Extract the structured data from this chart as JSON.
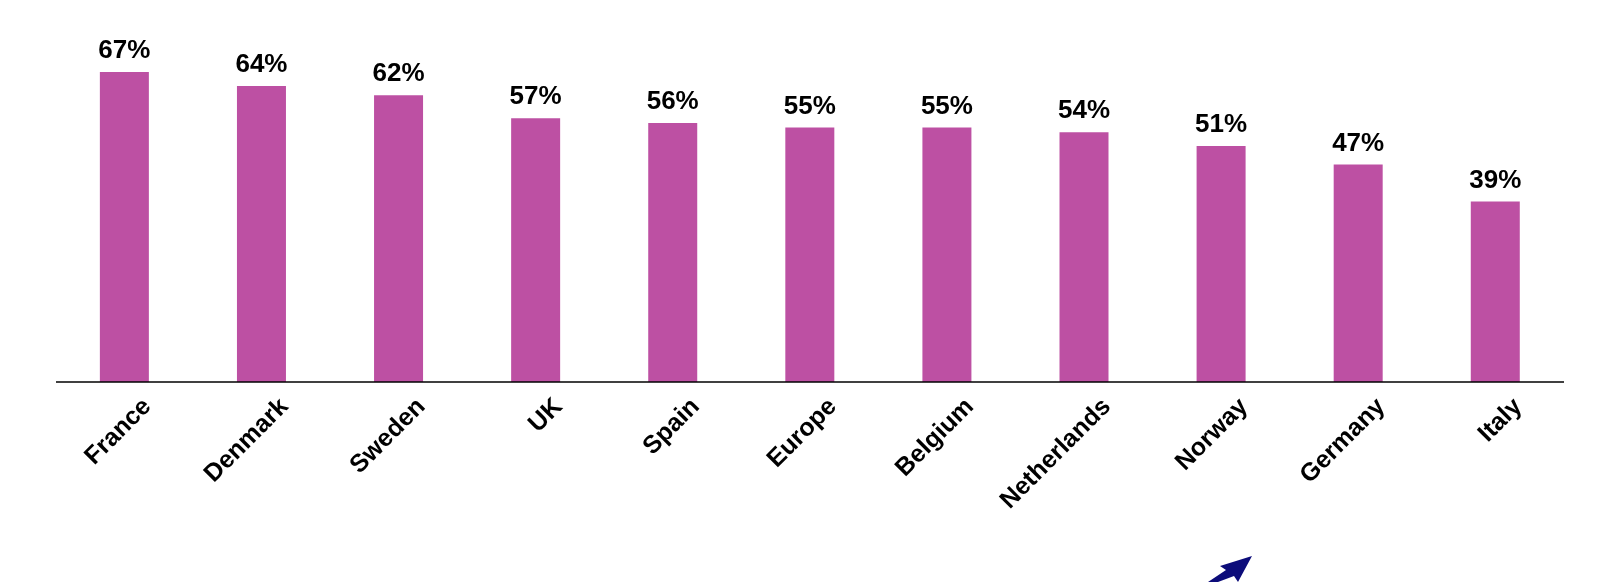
{
  "chart_data": {
    "type": "bar",
    "categories": [
      "France",
      "Denmark",
      "Sweden",
      "UK",
      "Spain",
      "Europe",
      "Belgium",
      "Netherlands",
      "Norway",
      "Germany",
      "Italy"
    ],
    "values": [
      67,
      64,
      62,
      57,
      56,
      55,
      55,
      54,
      51,
      47,
      39
    ],
    "value_labels": [
      "67%",
      "64%",
      "62%",
      "57%",
      "56%",
      "55%",
      "55%",
      "54%",
      "51%",
      "47%",
      "39%"
    ],
    "color": "#bd50a3",
    "grid": false,
    "legend": false
  }
}
